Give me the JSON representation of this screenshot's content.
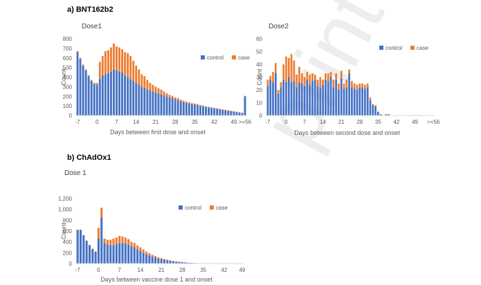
{
  "section_a": "a) BNT162b2",
  "section_b": "b) ChAdOx1",
  "watermark": "print",
  "colors": {
    "control": "#4472C4",
    "case": "#ED7D31",
    "axis": "#d9d9d9"
  },
  "chart_data": [
    {
      "type": "bar",
      "stacked": true,
      "title": "Dose1",
      "xlabel": "Days between first dose and onset",
      "ylabel": "Count",
      "ylim": [
        0,
        800
      ],
      "yticks": [
        "0",
        "100",
        "200",
        "300",
        "400",
        "500",
        "600",
        "700",
        "800"
      ],
      "x_start": -7,
      "xtick_labels": [
        "-7",
        "0",
        "7",
        "14",
        "21",
        "28",
        "35",
        "42",
        "49",
        ">=56"
      ],
      "legend": [
        "control",
        "case"
      ],
      "legend_position": "top-right",
      "series": [
        {
          "name": "control",
          "values": [
            660,
            590,
            520,
            470,
            410,
            360,
            330,
            320,
            380,
            420,
            430,
            440,
            460,
            480,
            470,
            460,
            450,
            420,
            400,
            380,
            360,
            340,
            320,
            300,
            290,
            270,
            260,
            250,
            240,
            230,
            220,
            210,
            200,
            190,
            180,
            170,
            160,
            150,
            140,
            130,
            125,
            120,
            115,
            110,
            100,
            95,
            90,
            85,
            80,
            75,
            70,
            65,
            60,
            55,
            50,
            45,
            40,
            35,
            30,
            25,
            200
          ]
        },
        {
          "name": "case",
          "values": [
            10,
            10,
            10,
            10,
            10,
            10,
            10,
            20,
            180,
            200,
            240,
            240,
            250,
            270,
            250,
            250,
            240,
            240,
            250,
            240,
            210,
            180,
            160,
            130,
            120,
            100,
            80,
            70,
            60,
            55,
            50,
            40,
            30,
            25,
            25,
            20,
            20,
            15,
            15,
            15,
            15,
            10,
            10,
            10,
            10,
            10,
            5,
            5,
            5,
            5,
            5,
            5,
            5,
            5,
            5,
            5,
            5,
            5,
            5,
            5,
            5
          ]
        }
      ]
    },
    {
      "type": "bar",
      "stacked": true,
      "title": "Dose2",
      "xlabel": "Days between second dose and onset",
      "ylabel": "Count",
      "ylim": [
        0,
        60
      ],
      "yticks": [
        "0",
        "10",
        "20",
        "30",
        "40",
        "50",
        "60"
      ],
      "x_start": -7,
      "xtick_labels": [
        "-7",
        "0",
        "7",
        "14",
        "21",
        "28",
        "35",
        "42",
        "49",
        ">=56"
      ],
      "legend": [
        "control",
        "case"
      ],
      "legend_position": "top-right",
      "series": [
        {
          "name": "control",
          "values": [
            23,
            28,
            26,
            33,
            17,
            22,
            28,
            26,
            30,
            26,
            27,
            22,
            26,
            25,
            23,
            28,
            24,
            27,
            28,
            23,
            22,
            24,
            28,
            27,
            30,
            22,
            28,
            20,
            29,
            21,
            22,
            33,
            22,
            21,
            20,
            22,
            22,
            21,
            22,
            12,
            8,
            7,
            3,
            1,
            0,
            1,
            1,
            0,
            0,
            0,
            0,
            0,
            0,
            0,
            0,
            0,
            0,
            0,
            0,
            0,
            0,
            0,
            0,
            0
          ]
        },
        {
          "name": "case",
          "values": [
            5,
            3,
            8,
            8,
            3,
            4,
            12,
            20,
            15,
            22,
            16,
            10,
            12,
            8,
            7,
            6,
            8,
            6,
            4,
            5,
            8,
            4,
            5,
            6,
            4,
            6,
            5,
            5,
            6,
            4,
            6,
            3,
            5,
            4,
            4,
            3,
            3,
            3,
            3,
            2,
            1,
            1,
            0,
            0,
            0,
            0,
            0,
            0,
            0,
            0,
            0,
            0,
            0,
            0,
            0,
            0,
            0,
            0,
            0,
            0,
            0,
            0,
            0,
            0
          ]
        }
      ]
    },
    {
      "type": "bar",
      "stacked": true,
      "title": "Dose 1",
      "xlabel": "Days between vaccine dose 1 and onset",
      "ylabel": "Count",
      "ylim": [
        0,
        1200
      ],
      "yticks": [
        "0",
        "200",
        "400",
        "600",
        "800",
        "1,000",
        "1,200"
      ],
      "x_start": -7,
      "xtick_labels": [
        "-7",
        "0",
        "7",
        "14",
        "21",
        "28",
        "35",
        "42",
        "49"
      ],
      "legend": [
        "control",
        "case"
      ],
      "legend_position": "top-right",
      "series": [
        {
          "name": "control",
          "values": [
            620,
            620,
            520,
            420,
            340,
            270,
            220,
            460,
            850,
            380,
            350,
            340,
            340,
            360,
            380,
            380,
            370,
            350,
            320,
            300,
            260,
            230,
            200,
            170,
            150,
            130,
            110,
            90,
            80,
            70,
            60,
            50,
            40,
            35,
            30,
            25,
            20,
            15,
            12,
            10,
            8,
            6,
            5,
            4,
            3,
            2,
            2,
            1,
            1,
            1,
            1,
            1,
            1,
            1,
            1,
            1
          ]
        },
        {
          "name": "case",
          "values": [
            5,
            5,
            5,
            5,
            5,
            5,
            5,
            200,
            180,
            80,
            90,
            100,
            120,
            120,
            130,
            120,
            110,
            100,
            80,
            80,
            70,
            70,
            60,
            50,
            40,
            30,
            30,
            25,
            20,
            15,
            12,
            10,
            8,
            6,
            5,
            4,
            3,
            2,
            2,
            1,
            1,
            1,
            1,
            1,
            0,
            0,
            0,
            0,
            0,
            0,
            0,
            0,
            0,
            0,
            0,
            0
          ]
        }
      ]
    }
  ]
}
